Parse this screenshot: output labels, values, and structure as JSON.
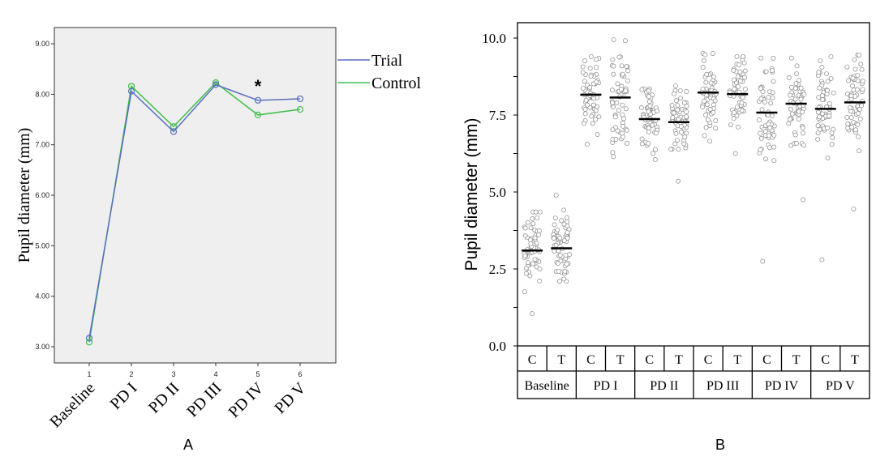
{
  "chart_data": [
    {
      "panel": "A",
      "type": "line",
      "xlabel": "",
      "ylabel": "Pupil diameter (mm)",
      "x_ticks": [
        "1",
        "2",
        "3",
        "4",
        "5",
        "6"
      ],
      "categories": [
        "Baseline",
        "PD I",
        "PD II",
        "PD III",
        "PD IV",
        "PD V"
      ],
      "y_ticks": [
        "3.00",
        "4.00",
        "5.00",
        "6.00",
        "7.00",
        "8.00",
        "9.00"
      ],
      "ylim": [
        2.8,
        9.3
      ],
      "legend": "top-right",
      "annotation": "*",
      "annotation_x": 5,
      "series": [
        {
          "name": "Trial",
          "color": "#5a6fc0",
          "values": [
            3.17,
            8.06,
            7.26,
            8.19,
            7.88,
            7.91
          ]
        },
        {
          "name": "Control",
          "color": "#3dbf4a",
          "values": [
            3.09,
            8.16,
            7.36,
            8.23,
            7.59,
            7.7
          ]
        }
      ],
      "background": "#efefef"
    },
    {
      "panel": "B",
      "type": "scatter",
      "ylabel": "Pupil diameter (mm)",
      "y_ticks": [
        "0.0",
        "2.5",
        "5.0",
        "7.5",
        "10.0"
      ],
      "ylim": [
        0,
        10.5
      ],
      "groups": [
        "Baseline",
        "PD I",
        "PD II",
        "PD III",
        "PD IV",
        "PD V"
      ],
      "subgroups": [
        "C",
        "T"
      ],
      "series": [
        {
          "group": "Baseline",
          "sub": "C",
          "mean": 3.1,
          "min": 1.05,
          "max": 4.35
        },
        {
          "group": "Baseline",
          "sub": "T",
          "mean": 3.17,
          "min": 2.1,
          "max": 4.9
        },
        {
          "group": "PD I",
          "sub": "C",
          "mean": 8.16,
          "min": 6.55,
          "max": 9.4
        },
        {
          "group": "PD I",
          "sub": "T",
          "mean": 8.07,
          "min": 6.15,
          "max": 9.95
        },
        {
          "group": "PD II",
          "sub": "C",
          "mean": 7.37,
          "min": 6.05,
          "max": 8.35
        },
        {
          "group": "PD II",
          "sub": "T",
          "mean": 7.27,
          "min": 5.35,
          "max": 8.45
        },
        {
          "group": "PD III",
          "sub": "C",
          "mean": 8.23,
          "min": 6.65,
          "max": 9.5
        },
        {
          "group": "PD III",
          "sub": "T",
          "mean": 8.18,
          "min": 6.25,
          "max": 9.4
        },
        {
          "group": "PD IV",
          "sub": "C",
          "mean": 7.58,
          "min": 2.75,
          "max": 9.35
        },
        {
          "group": "PD IV",
          "sub": "T",
          "mean": 7.87,
          "min": 4.75,
          "max": 9.35
        },
        {
          "group": "PD V",
          "sub": "C",
          "mean": 7.7,
          "min": 2.8,
          "max": 9.4
        },
        {
          "group": "PD V",
          "sub": "T",
          "mean": 7.91,
          "min": 4.45,
          "max": 9.45
        }
      ]
    }
  ],
  "panel_labels": {
    "a": "A",
    "b": "B"
  }
}
